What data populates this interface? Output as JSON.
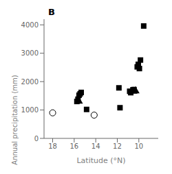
{
  "chart_data": {
    "type": "scatter",
    "title": "B",
    "x_label": "Latitude (°N)",
    "y_label": "Annual precipitation (mm)",
    "xlim": [
      18.8,
      8.2
    ],
    "ylim": [
      0,
      4200
    ],
    "xticks": [
      18,
      16,
      14,
      12,
      10
    ],
    "yticks": [
      0,
      1000,
      2000,
      3000,
      4000
    ],
    "grid": false,
    "series": [
      {
        "color": "#000000",
        "marker": "open_circle",
        "x": [
          18.0,
          14.15
        ],
        "y": [
          900,
          820
        ]
      },
      {
        "color": "#000000",
        "marker": "square",
        "x": [
          15.75,
          15.65,
          15.55,
          15.45,
          15.35,
          14.85,
          11.85,
          11.75,
          10.85,
          10.75,
          10.55,
          10.45,
          10.15,
          10.05,
          9.95,
          9.85,
          9.55
        ],
        "y": [
          1300,
          1380,
          1520,
          1570,
          1620,
          1020,
          1780,
          1080,
          1660,
          1610,
          1710,
          1720,
          2520,
          2610,
          2460,
          2760,
          3960
        ]
      },
      {
        "color": "#000000",
        "marker": "triangle",
        "x": [
          15.58,
          10.52,
          10.32
        ],
        "y": [
          1310,
          1660,
          1670
        ]
      }
    ]
  }
}
